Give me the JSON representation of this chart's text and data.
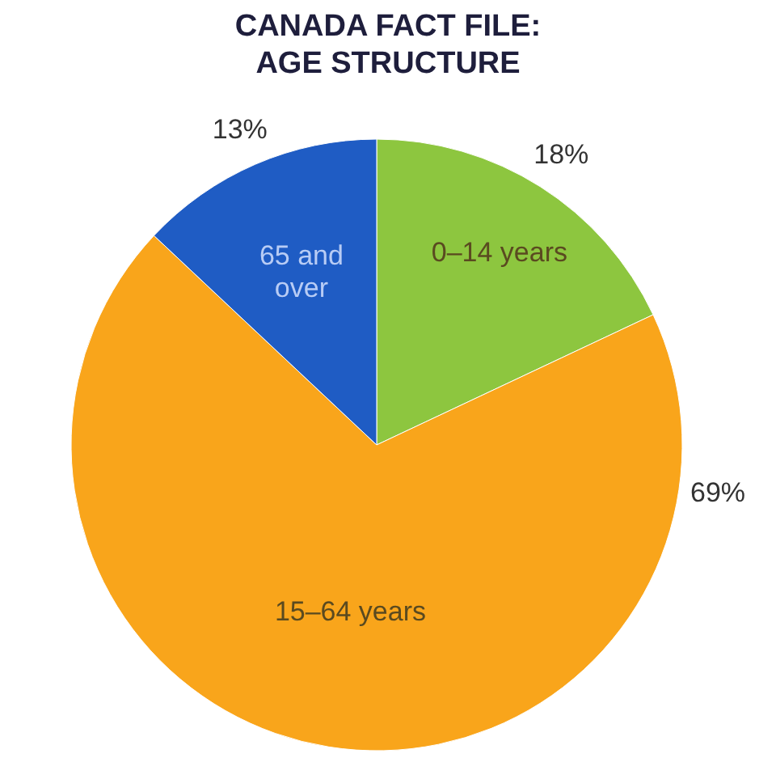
{
  "chart_data": {
    "type": "pie",
    "title": "CANADA FACT FILE:\nAGE STRUCTURE",
    "categories": [
      "0–14 years",
      "15–64 years",
      "65 and over"
    ],
    "values": [
      18,
      69,
      13
    ],
    "colors": [
      "#8dc63f",
      "#f9a51b",
      "#1f5cc4"
    ],
    "value_labels": [
      "18%",
      "69%",
      "13%"
    ]
  }
}
